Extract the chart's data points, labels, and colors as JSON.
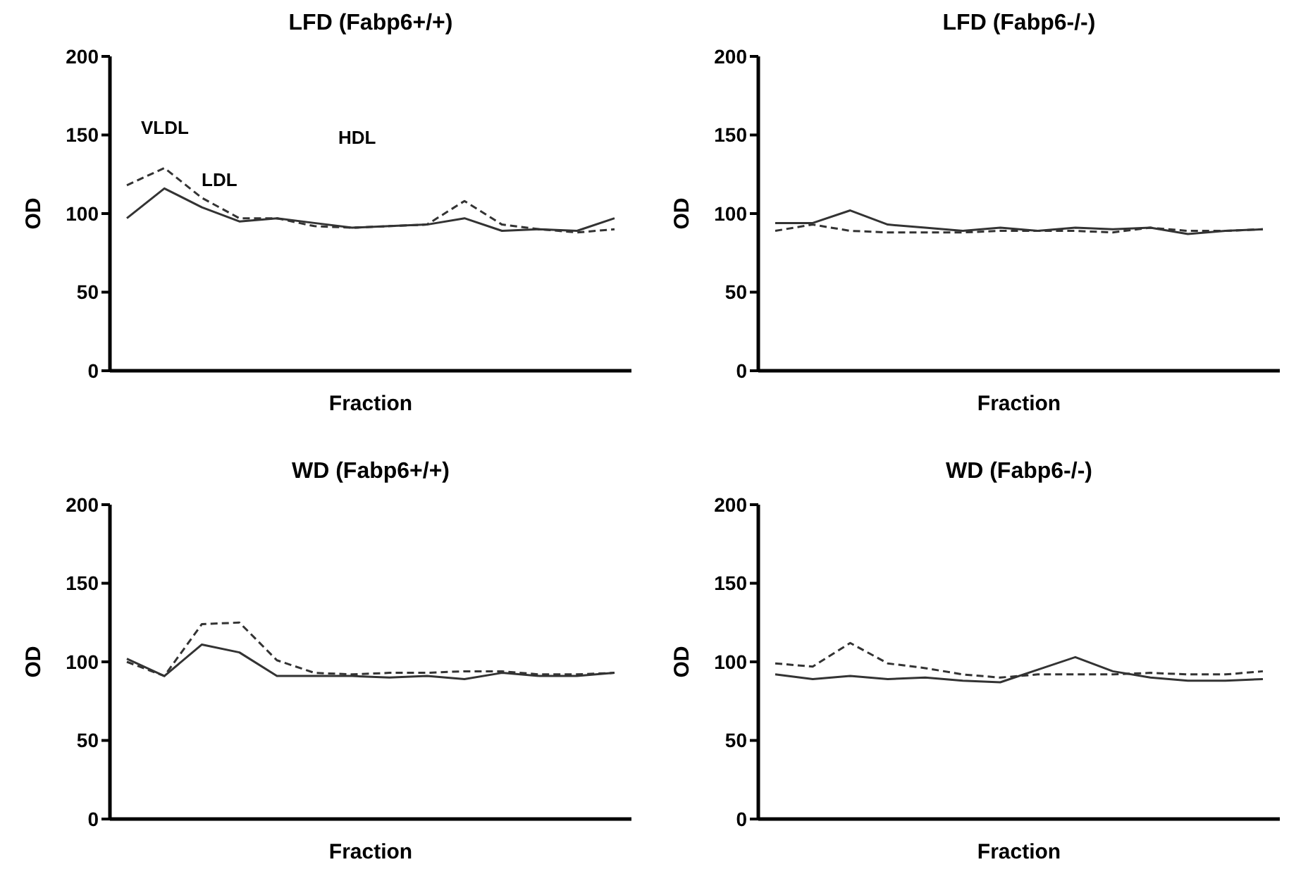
{
  "chart_data": [
    {
      "type": "line",
      "title": "LFD (Fabp6+/+)",
      "xlabel": "Fraction",
      "ylabel": "OD",
      "annotations": [
        "VLDL",
        "LDL",
        "HDL"
      ],
      "categories": [
        null,
        null,
        null,
        null,
        null,
        null,
        null,
        null,
        null,
        null,
        null,
        null,
        null,
        null
      ],
      "tick_labels": "y",
      "ylim": [
        0,
        200
      ],
      "yticks": [
        0,
        50,
        100,
        150,
        200
      ],
      "grid": false,
      "legend": false,
      "marker": "none",
      "series": [
        {
          "color": "#333333",
          "line_style": "solid",
          "values": [
            97,
            116,
            104,
            95,
            97,
            94,
            91,
            92,
            93,
            97,
            89,
            90,
            89,
            97
          ]
        },
        {
          "color": "#333333",
          "line_style": "dashed",
          "values": [
            118,
            129,
            110,
            97,
            97,
            92,
            91,
            92,
            93,
            108,
            93,
            90,
            88,
            90
          ]
        }
      ]
    },
    {
      "type": "line",
      "title": "LFD  (Fabp6-/-)",
      "xlabel": "Fraction",
      "ylabel": "OD",
      "categories": [
        null,
        null,
        null,
        null,
        null,
        null,
        null,
        null,
        null,
        null,
        null,
        null,
        null,
        null
      ],
      "tick_labels": "y",
      "ylim": [
        0,
        200
      ],
      "yticks": [
        0,
        50,
        100,
        150,
        200
      ],
      "grid": false,
      "legend": false,
      "marker": "none",
      "series": [
        {
          "color": "#333333",
          "line_style": "solid",
          "values": [
            94,
            94,
            102,
            93,
            91,
            89,
            91,
            89,
            91,
            90,
            91,
            87,
            89,
            90
          ]
        },
        {
          "color": "#333333",
          "line_style": "dashed",
          "values": [
            89,
            93,
            89,
            88,
            88,
            88,
            89,
            89,
            89,
            88,
            91,
            89,
            89,
            90
          ]
        }
      ]
    },
    {
      "type": "line",
      "title": "WD (Fabp6+/+)",
      "xlabel": "Fraction",
      "ylabel": "OD",
      "categories": [
        null,
        null,
        null,
        null,
        null,
        null,
        null,
        null,
        null,
        null,
        null,
        null,
        null,
        null
      ],
      "tick_labels": "y",
      "ylim": [
        0,
        200
      ],
      "yticks": [
        0,
        50,
        100,
        150,
        200
      ],
      "grid": false,
      "legend": false,
      "marker": "none",
      "series": [
        {
          "color": "#333333",
          "line_style": "solid",
          "values": [
            102,
            91,
            111,
            106,
            91,
            91,
            91,
            90,
            91,
            89,
            93,
            91,
            91,
            93
          ]
        },
        {
          "color": "#333333",
          "line_style": "dashed",
          "values": [
            100,
            91,
            124,
            125,
            101,
            93,
            92,
            93,
            93,
            94,
            94,
            92,
            92,
            93
          ]
        }
      ]
    },
    {
      "type": "line",
      "title": "WD (Fabp6-/-)",
      "xlabel": "Fraction",
      "ylabel": "OD",
      "categories": [
        null,
        null,
        null,
        null,
        null,
        null,
        null,
        null,
        null,
        null,
        null,
        null,
        null,
        null
      ],
      "tick_labels": "y",
      "ylim": [
        0,
        200
      ],
      "yticks": [
        0,
        50,
        100,
        150,
        200
      ],
      "grid": false,
      "legend": false,
      "marker": "none",
      "series": [
        {
          "color": "#333333",
          "line_style": "solid",
          "values": [
            92,
            89,
            91,
            89,
            90,
            88,
            87,
            95,
            103,
            94,
            90,
            88,
            88,
            89
          ]
        },
        {
          "color": "#333333",
          "line_style": "dashed",
          "values": [
            99,
            97,
            112,
            99,
            96,
            92,
            90,
            92,
            92,
            92,
            93,
            92,
            92,
            94
          ]
        }
      ]
    }
  ]
}
